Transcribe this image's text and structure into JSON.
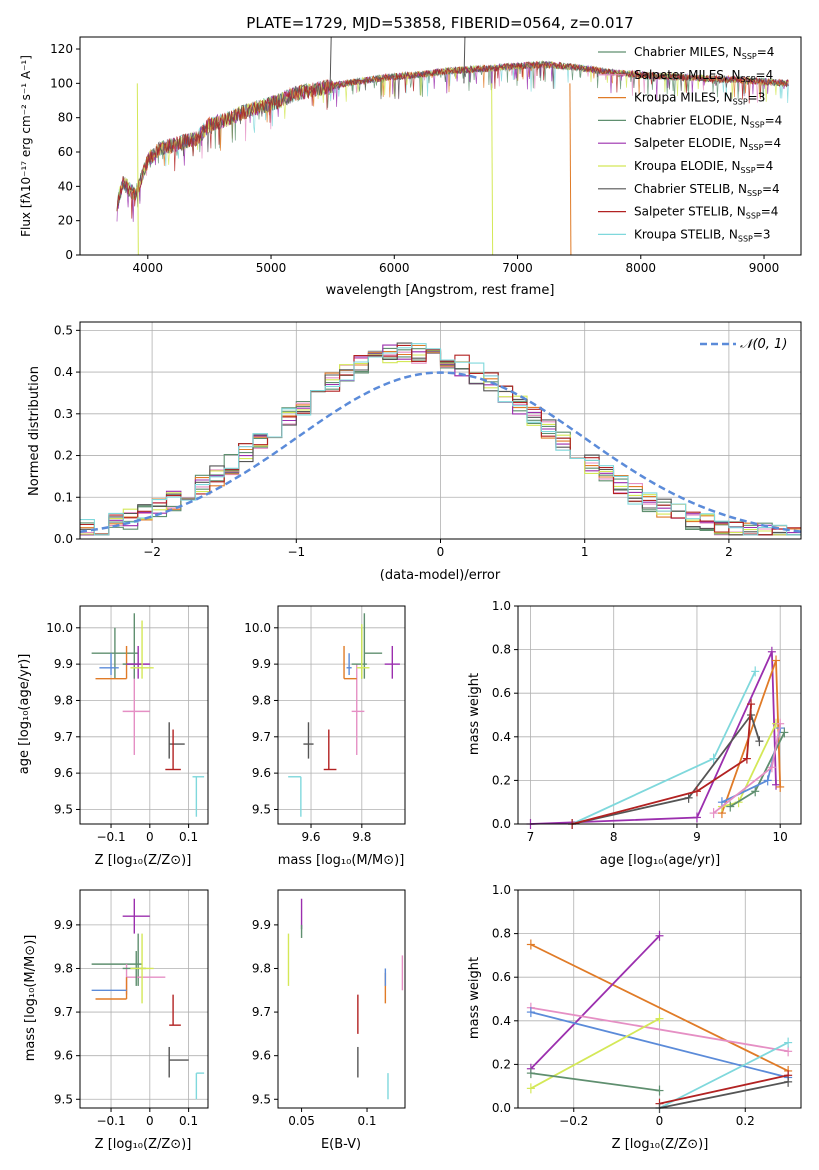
{
  "chart_data": [
    {
      "type": "line",
      "title": "PLATE=1729, MJD=53858, FIBERID=0564, z=0.017",
      "xlabel": "wavelength [Angstrom, rest frame]",
      "ylabel": "Flux [fλ10⁻¹⁷ erg cm⁻² s⁻¹ A⁻¹]",
      "xlim": [
        3450,
        9300
      ],
      "ylim": [
        0,
        127
      ],
      "xticks": [
        4000,
        5000,
        6000,
        7000,
        8000,
        9000
      ],
      "yticks": [
        0,
        20,
        40,
        60,
        80,
        100,
        120
      ],
      "legend_position": "right",
      "series": [
        {
          "name": "Chabrier MILES, N",
          "sub": "SSP",
          "tail": "=4",
          "color": "#5f8f6f"
        },
        {
          "name": "Salpeter MILES, N",
          "sub": "SSP",
          "tail": "=4",
          "color": "#e58fc4"
        },
        {
          "name": "Kroupa MILES, N",
          "sub": "SSP",
          "tail": "=3",
          "color": "#e07b27"
        },
        {
          "name": "Chabrier ELODIE, N",
          "sub": "SSP",
          "tail": "=4",
          "color": "#5f8f6f"
        },
        {
          "name": "Salpeter ELODIE, N",
          "sub": "SSP",
          "tail": "=4",
          "color": "#9b2fae"
        },
        {
          "name": "Kroupa ELODIE, N",
          "sub": "SSP",
          "tail": "=4",
          "color": "#d4e857"
        },
        {
          "name": "Chabrier STELIB, N",
          "sub": "SSP",
          "tail": "=4",
          "color": "#555555"
        },
        {
          "name": "Salpeter STELIB, N",
          "sub": "SSP",
          "tail": "=4",
          "color": "#b22222"
        },
        {
          "name": "Kroupa STELIB, N",
          "sub": "SSP",
          "tail": "=3",
          "color": "#7fd8dc"
        }
      ],
      "spectrum_shape": {
        "x": [
          3750,
          3800,
          3900,
          4000,
          4100,
          4200,
          4300,
          4400,
          4500,
          4600,
          4800,
          5000,
          5200,
          5400,
          5600,
          5800,
          6000,
          6200,
          6400,
          6600,
          6800,
          7000,
          7200,
          7400,
          7600,
          7800,
          8000,
          8200,
          8500,
          8800,
          9000,
          9200
        ],
        "y": [
          30,
          42,
          35,
          55,
          62,
          64,
          66,
          68,
          76,
          78,
          84,
          88,
          94,
          97,
          100,
          102,
          104,
          105,
          107,
          108,
          109,
          110,
          111,
          110,
          108,
          106,
          105,
          104,
          103,
          102,
          101,
          100
        ]
      },
      "spikes": [
        {
          "x": 5480,
          "y": 127,
          "color": "#555555"
        },
        {
          "x": 6565,
          "y": 127,
          "color": "#555555"
        },
        {
          "x": 3915,
          "y": 0,
          "color": "#d4e857"
        },
        {
          "x": 6790,
          "y": 0,
          "color": "#d4e857"
        },
        {
          "x": 7425,
          "y": 0,
          "color": "#e07b27"
        }
      ]
    },
    {
      "type": "histogram",
      "xlabel": "(data-model)/error",
      "ylabel": "Normed distribution",
      "xlim": [
        -2.5,
        2.5
      ],
      "ylim": [
        0,
        0.52
      ],
      "xticks": [
        -2,
        -1,
        0,
        1,
        2
      ],
      "yticks": [
        0.0,
        0.1,
        0.2,
        0.3,
        0.4,
        0.5
      ],
      "grid": true,
      "legend_position": "top-right",
      "legend_label": "𝒩(0, 1)",
      "gaussian_color": "#5b8bd9",
      "bin_width": 0.1,
      "series_colors": [
        "#5f8f6f",
        "#e58fc4",
        "#e07b27",
        "#5f8f6f",
        "#9b2fae",
        "#d4e857",
        "#555555",
        "#b22222",
        "#7fd8dc"
      ]
    },
    {
      "type": "scatter",
      "xlabel": "Z [log₁₀(Z/Z⊙)]",
      "ylabel": "age  [log₁₀(age/yr)]",
      "xlim": [
        -0.18,
        0.15
      ],
      "ylim": [
        9.46,
        10.06
      ],
      "xticks": [
        -0.1,
        0.0,
        0.1
      ],
      "yticks": [
        9.5,
        9.6,
        9.7,
        9.8,
        9.9,
        10.0
      ],
      "points": [
        {
          "color": "#5f8f6f",
          "x": -0.09,
          "y": 9.93,
          "xmin": -0.15,
          "xmax": -0.03,
          "ymin": 9.86,
          "ymax": 10.0
        },
        {
          "color": "#e58fc4",
          "x": -0.04,
          "y": 9.77,
          "xmin": -0.07,
          "xmax": 0.0,
          "ymin": 9.65,
          "ymax": 9.9
        },
        {
          "color": "#e07b27",
          "x": -0.06,
          "y": 9.86,
          "xmin": -0.14,
          "xmax": -0.06,
          "ymin": 9.86,
          "ymax": 9.95
        },
        {
          "color": "#5f8f6f",
          "x": -0.04,
          "y": 9.9,
          "xmin": -0.07,
          "xmax": -0.02,
          "ymin": 9.86,
          "ymax": 10.04
        },
        {
          "color": "#9b2fae",
          "x": -0.03,
          "y": 9.9,
          "xmin": -0.06,
          "xmax": 0.0,
          "ymin": 9.86,
          "ymax": 9.95
        },
        {
          "color": "#d4e857",
          "x": -0.02,
          "y": 9.89,
          "xmin": -0.05,
          "xmax": 0.01,
          "ymin": 9.86,
          "ymax": 10.02
        },
        {
          "color": "#555555",
          "x": 0.05,
          "y": 9.68,
          "xmin": 0.05,
          "xmax": 0.09,
          "ymin": 9.64,
          "ymax": 9.74
        },
        {
          "color": "#b22222",
          "x": 0.06,
          "y": 9.61,
          "xmin": 0.04,
          "xmax": 0.08,
          "ymin": 9.61,
          "ymax": 9.72
        },
        {
          "color": "#7fd8dc",
          "x": 0.12,
          "y": 9.59,
          "xmin": 0.11,
          "xmax": 0.14,
          "ymin": 9.48,
          "ymax": 9.59
        },
        {
          "color": "#5b8bd9",
          "x": -0.1,
          "y": 9.89,
          "xmin": -0.13,
          "xmax": -0.08,
          "ymin": 9.87,
          "ymax": 9.93
        }
      ]
    },
    {
      "type": "scatter",
      "xlabel": "mass [log₁₀(M/M⊙)]",
      "ylabel": "",
      "xlim": [
        9.47,
        9.97
      ],
      "ylim": [
        9.46,
        10.06
      ],
      "xticks": [
        9.6,
        9.8
      ],
      "yticks": [
        9.5,
        9.6,
        9.7,
        9.8,
        9.9,
        10.0
      ],
      "points": [
        {
          "color": "#5f8f6f",
          "x": 9.81,
          "y": 9.93,
          "xmin": 9.81,
          "xmax": 9.88,
          "ymin": 9.86,
          "ymax": 10.04
        },
        {
          "color": "#e58fc4",
          "x": 9.78,
          "y": 9.77,
          "xmin": 9.76,
          "xmax": 9.81,
          "ymin": 9.65,
          "ymax": 9.9
        },
        {
          "color": "#e07b27",
          "x": 9.73,
          "y": 9.86,
          "xmin": 9.73,
          "xmax": 9.78,
          "ymin": 9.86,
          "ymax": 9.95
        },
        {
          "color": "#5f8f6f",
          "x": 9.8,
          "y": 9.9,
          "xmin": 9.76,
          "xmax": 9.82,
          "ymin": 9.86,
          "ymax": 10.0
        },
        {
          "color": "#9b2fae",
          "x": 9.92,
          "y": 9.9,
          "xmin": 9.89,
          "xmax": 9.95,
          "ymin": 9.86,
          "ymax": 9.95
        },
        {
          "color": "#d4e857",
          "x": 9.8,
          "y": 9.89,
          "xmin": 9.78,
          "xmax": 9.83,
          "ymin": 9.86,
          "ymax": 10.01
        },
        {
          "color": "#555555",
          "x": 9.59,
          "y": 9.68,
          "xmin": 9.57,
          "xmax": 9.61,
          "ymin": 9.64,
          "ymax": 9.74
        },
        {
          "color": "#b22222",
          "x": 9.67,
          "y": 9.61,
          "xmin": 9.65,
          "xmax": 9.7,
          "ymin": 9.61,
          "ymax": 9.72
        },
        {
          "color": "#7fd8dc",
          "x": 9.56,
          "y": 9.59,
          "xmin": 9.51,
          "xmax": 9.56,
          "ymin": 9.48,
          "ymax": 9.59
        },
        {
          "color": "#5b8bd9",
          "x": 9.75,
          "y": 9.89,
          "xmin": 9.74,
          "xmax": 9.76,
          "ymin": 9.87,
          "ymax": 9.93
        }
      ]
    },
    {
      "type": "line",
      "xlabel": "age  [log₁₀(age/yr)]",
      "ylabel": "mass weight",
      "xlim": [
        6.85,
        10.25
      ],
      "ylim": [
        0,
        1
      ],
      "xticks": [
        7,
        8,
        9,
        10
      ],
      "yticks": [
        0.0,
        0.2,
        0.4,
        0.6,
        0.8,
        1.0
      ],
      "grid": true,
      "series": [
        {
          "color": "#9b2fae",
          "x": [
            7.0,
            9.0,
            9.9,
            9.95
          ],
          "y": [
            0.0,
            0.03,
            0.79,
            0.18
          ]
        },
        {
          "color": "#7fd8dc",
          "x": [
            7.5,
            9.2,
            9.7
          ],
          "y": [
            0.0,
            0.3,
            0.7
          ]
        },
        {
          "color": "#e07b27",
          "x": [
            9.3,
            9.95,
            10.0
          ],
          "y": [
            0.05,
            0.75,
            0.17
          ]
        },
        {
          "color": "#555555",
          "x": [
            7.5,
            8.9,
            9.65,
            9.75
          ],
          "y": [
            0.0,
            0.12,
            0.5,
            0.38
          ]
        },
        {
          "color": "#b22222",
          "x": [
            7.5,
            9.0,
            9.6,
            9.65
          ],
          "y": [
            0.0,
            0.15,
            0.3,
            0.55
          ]
        },
        {
          "color": "#d4e857",
          "x": [
            9.3,
            9.5,
            9.95
          ],
          "y": [
            0.08,
            0.1,
            0.46
          ]
        },
        {
          "color": "#5f8f6f",
          "x": [
            9.4,
            9.7,
            10.05
          ],
          "y": [
            0.08,
            0.15,
            0.42
          ]
        },
        {
          "color": "#5b8bd9",
          "x": [
            9.3,
            9.85,
            10.0
          ],
          "y": [
            0.1,
            0.2,
            0.44
          ]
        },
        {
          "color": "#e58fc4",
          "x": [
            9.2,
            9.9,
            10.0
          ],
          "y": [
            0.05,
            0.26,
            0.46
          ]
        }
      ]
    },
    {
      "type": "scatter",
      "xlabel": "Z [log₁₀(Z/Z⊙)]",
      "ylabel": "mass [log₁₀(M/M⊙)]",
      "xlim": [
        -0.18,
        0.15
      ],
      "ylim": [
        9.48,
        9.98
      ],
      "xticks": [
        -0.1,
        0.0,
        0.1
      ],
      "yticks": [
        9.5,
        9.6,
        9.7,
        9.8,
        9.9
      ],
      "points": [
        {
          "color": "#5f8f6f",
          "x": -0.03,
          "y": 9.81,
          "xmin": -0.15,
          "xmax": -0.02,
          "ymin": 9.76,
          "ymax": 9.88
        },
        {
          "color": "#e58fc4",
          "x": -0.06,
          "y": 9.78,
          "xmin": -0.06,
          "xmax": 0.04,
          "ymin": 9.74,
          "ymax": 9.81
        },
        {
          "color": "#e07b27",
          "x": -0.06,
          "y": 9.73,
          "xmin": -0.14,
          "xmax": -0.06,
          "ymin": 9.73,
          "ymax": 9.78
        },
        {
          "color": "#5f8f6f",
          "x": -0.035,
          "y": 9.8,
          "xmin": -0.07,
          "xmax": -0.01,
          "ymin": 9.76,
          "ymax": 9.84
        },
        {
          "color": "#9b2fae",
          "x": -0.04,
          "y": 9.92,
          "xmin": -0.07,
          "xmax": 0.0,
          "ymin": 9.88,
          "ymax": 9.96
        },
        {
          "color": "#d4e857",
          "x": -0.02,
          "y": 9.8,
          "xmin": -0.05,
          "xmax": 0.01,
          "ymin": 9.72,
          "ymax": 9.88
        },
        {
          "color": "#555555",
          "x": 0.05,
          "y": 9.59,
          "xmin": 0.05,
          "xmax": 0.1,
          "ymin": 9.55,
          "ymax": 9.62
        },
        {
          "color": "#b22222",
          "x": 0.06,
          "y": 9.67,
          "xmin": 0.05,
          "xmax": 0.08,
          "ymin": 9.67,
          "ymax": 9.74
        },
        {
          "color": "#7fd8dc",
          "x": 0.12,
          "y": 9.56,
          "xmin": 0.12,
          "xmax": 0.14,
          "ymin": 9.5,
          "ymax": 9.56
        },
        {
          "color": "#5b8bd9",
          "x": -0.1,
          "y": 9.75,
          "xmin": -0.15,
          "xmax": -0.06,
          "ymin": 9.75,
          "ymax": 9.75
        }
      ]
    },
    {
      "type": "scatter",
      "xlabel": "E(B-V)",
      "ylabel": "",
      "xlim": [
        0.032,
        0.129
      ],
      "ylim": [
        9.48,
        9.98
      ],
      "xticks": [
        0.05,
        0.1
      ],
      "yticks": [
        9.5,
        9.6,
        9.7,
        9.8,
        9.9
      ],
      "points": [
        {
          "color": "#d4e857",
          "x": 0.04,
          "ymin": 9.76,
          "ymax": 9.88
        },
        {
          "color": "#9b2fae",
          "x": 0.05,
          "ymin": 9.89,
          "ymax": 9.96
        },
        {
          "color": "#5f8f6f",
          "x": 0.05,
          "ymin": 9.87,
          "ymax": 9.9
        },
        {
          "color": "#b22222",
          "x": 0.093,
          "ymin": 9.65,
          "ymax": 9.74
        },
        {
          "color": "#555555",
          "x": 0.093,
          "ymin": 9.55,
          "ymax": 9.62
        },
        {
          "color": "#e07b27",
          "x": 0.114,
          "ymin": 9.72,
          "ymax": 9.79
        },
        {
          "color": "#5b8bd9",
          "x": 0.114,
          "ymin": 9.76,
          "ymax": 9.8
        },
        {
          "color": "#7fd8dc",
          "x": 0.116,
          "ymin": 9.5,
          "ymax": 9.56
        },
        {
          "color": "#e58fc4",
          "x": 0.127,
          "ymin": 9.75,
          "ymax": 9.83
        }
      ]
    },
    {
      "type": "line",
      "xlabel": "Z [log₁₀(Z/Z⊙)]",
      "ylabel": "mass weight",
      "xlim": [
        -0.33,
        0.33
      ],
      "ylim": [
        0,
        1
      ],
      "xticks": [
        -0.2,
        0.0,
        0.2
      ],
      "yticks": [
        0.0,
        0.2,
        0.4,
        0.6,
        0.8,
        1.0
      ],
      "grid": true,
      "series": [
        {
          "color": "#e07b27",
          "x": [
            -0.3,
            0.3
          ],
          "y": [
            0.75,
            0.17
          ]
        },
        {
          "color": "#9b2fae",
          "x": [
            -0.3,
            0.0
          ],
          "y": [
            0.18,
            0.79
          ]
        },
        {
          "color": "#e58fc4",
          "x": [
            -0.3,
            0.3
          ],
          "y": [
            0.46,
            0.26
          ]
        },
        {
          "color": "#5b8bd9",
          "x": [
            -0.3,
            0.3
          ],
          "y": [
            0.44,
            0.14
          ]
        },
        {
          "color": "#d4e857",
          "x": [
            -0.3,
            0.0
          ],
          "y": [
            0.09,
            0.41
          ]
        },
        {
          "color": "#5f8f6f",
          "x": [
            -0.3,
            0.0
          ],
          "y": [
            0.16,
            0.08
          ]
        },
        {
          "color": "#7fd8dc",
          "x": [
            0.0,
            0.3
          ],
          "y": [
            0.0,
            0.3
          ]
        },
        {
          "color": "#b22222",
          "x": [
            0.0,
            0.3
          ],
          "y": [
            0.02,
            0.15
          ]
        },
        {
          "color": "#555555",
          "x": [
            0.0,
            0.3
          ],
          "y": [
            0.0,
            0.12
          ]
        }
      ]
    }
  ]
}
